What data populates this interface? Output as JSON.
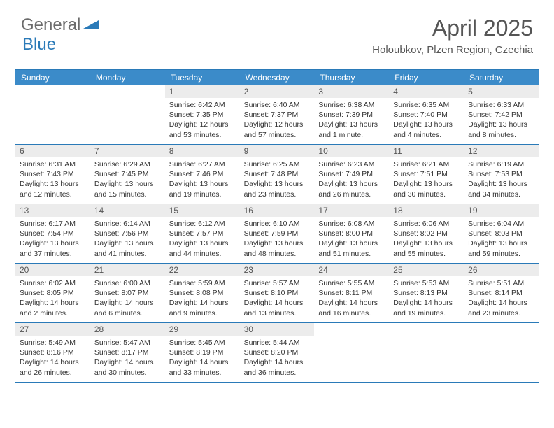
{
  "logo": {
    "gray": "General",
    "blue": "Blue"
  },
  "title": "April 2025",
  "location": "Holoubkov, Plzen Region, Czechia",
  "colors": {
    "header_bar": "#3b8bc9",
    "border": "#2a7ab8",
    "daynum_bg": "#ececec",
    "text": "#333333",
    "title_text": "#555555"
  },
  "weekdays": [
    "Sunday",
    "Monday",
    "Tuesday",
    "Wednesday",
    "Thursday",
    "Friday",
    "Saturday"
  ],
  "weeks": [
    [
      {
        "empty": true
      },
      {
        "empty": true
      },
      {
        "num": "1",
        "sr": "Sunrise: 6:42 AM",
        "ss": "Sunset: 7:35 PM",
        "dl": "Daylight: 12 hours and 53 minutes."
      },
      {
        "num": "2",
        "sr": "Sunrise: 6:40 AM",
        "ss": "Sunset: 7:37 PM",
        "dl": "Daylight: 12 hours and 57 minutes."
      },
      {
        "num": "3",
        "sr": "Sunrise: 6:38 AM",
        "ss": "Sunset: 7:39 PM",
        "dl": "Daylight: 13 hours and 1 minute."
      },
      {
        "num": "4",
        "sr": "Sunrise: 6:35 AM",
        "ss": "Sunset: 7:40 PM",
        "dl": "Daylight: 13 hours and 4 minutes."
      },
      {
        "num": "5",
        "sr": "Sunrise: 6:33 AM",
        "ss": "Sunset: 7:42 PM",
        "dl": "Daylight: 13 hours and 8 minutes."
      }
    ],
    [
      {
        "num": "6",
        "sr": "Sunrise: 6:31 AM",
        "ss": "Sunset: 7:43 PM",
        "dl": "Daylight: 13 hours and 12 minutes."
      },
      {
        "num": "7",
        "sr": "Sunrise: 6:29 AM",
        "ss": "Sunset: 7:45 PM",
        "dl": "Daylight: 13 hours and 15 minutes."
      },
      {
        "num": "8",
        "sr": "Sunrise: 6:27 AM",
        "ss": "Sunset: 7:46 PM",
        "dl": "Daylight: 13 hours and 19 minutes."
      },
      {
        "num": "9",
        "sr": "Sunrise: 6:25 AM",
        "ss": "Sunset: 7:48 PM",
        "dl": "Daylight: 13 hours and 23 minutes."
      },
      {
        "num": "10",
        "sr": "Sunrise: 6:23 AM",
        "ss": "Sunset: 7:49 PM",
        "dl": "Daylight: 13 hours and 26 minutes."
      },
      {
        "num": "11",
        "sr": "Sunrise: 6:21 AM",
        "ss": "Sunset: 7:51 PM",
        "dl": "Daylight: 13 hours and 30 minutes."
      },
      {
        "num": "12",
        "sr": "Sunrise: 6:19 AM",
        "ss": "Sunset: 7:53 PM",
        "dl": "Daylight: 13 hours and 34 minutes."
      }
    ],
    [
      {
        "num": "13",
        "sr": "Sunrise: 6:17 AM",
        "ss": "Sunset: 7:54 PM",
        "dl": "Daylight: 13 hours and 37 minutes."
      },
      {
        "num": "14",
        "sr": "Sunrise: 6:14 AM",
        "ss": "Sunset: 7:56 PM",
        "dl": "Daylight: 13 hours and 41 minutes."
      },
      {
        "num": "15",
        "sr": "Sunrise: 6:12 AM",
        "ss": "Sunset: 7:57 PM",
        "dl": "Daylight: 13 hours and 44 minutes."
      },
      {
        "num": "16",
        "sr": "Sunrise: 6:10 AM",
        "ss": "Sunset: 7:59 PM",
        "dl": "Daylight: 13 hours and 48 minutes."
      },
      {
        "num": "17",
        "sr": "Sunrise: 6:08 AM",
        "ss": "Sunset: 8:00 PM",
        "dl": "Daylight: 13 hours and 51 minutes."
      },
      {
        "num": "18",
        "sr": "Sunrise: 6:06 AM",
        "ss": "Sunset: 8:02 PM",
        "dl": "Daylight: 13 hours and 55 minutes."
      },
      {
        "num": "19",
        "sr": "Sunrise: 6:04 AM",
        "ss": "Sunset: 8:03 PM",
        "dl": "Daylight: 13 hours and 59 minutes."
      }
    ],
    [
      {
        "num": "20",
        "sr": "Sunrise: 6:02 AM",
        "ss": "Sunset: 8:05 PM",
        "dl": "Daylight: 14 hours and 2 minutes."
      },
      {
        "num": "21",
        "sr": "Sunrise: 6:00 AM",
        "ss": "Sunset: 8:07 PM",
        "dl": "Daylight: 14 hours and 6 minutes."
      },
      {
        "num": "22",
        "sr": "Sunrise: 5:59 AM",
        "ss": "Sunset: 8:08 PM",
        "dl": "Daylight: 14 hours and 9 minutes."
      },
      {
        "num": "23",
        "sr": "Sunrise: 5:57 AM",
        "ss": "Sunset: 8:10 PM",
        "dl": "Daylight: 14 hours and 13 minutes."
      },
      {
        "num": "24",
        "sr": "Sunrise: 5:55 AM",
        "ss": "Sunset: 8:11 PM",
        "dl": "Daylight: 14 hours and 16 minutes."
      },
      {
        "num": "25",
        "sr": "Sunrise: 5:53 AM",
        "ss": "Sunset: 8:13 PM",
        "dl": "Daylight: 14 hours and 19 minutes."
      },
      {
        "num": "26",
        "sr": "Sunrise: 5:51 AM",
        "ss": "Sunset: 8:14 PM",
        "dl": "Daylight: 14 hours and 23 minutes."
      }
    ],
    [
      {
        "num": "27",
        "sr": "Sunrise: 5:49 AM",
        "ss": "Sunset: 8:16 PM",
        "dl": "Daylight: 14 hours and 26 minutes."
      },
      {
        "num": "28",
        "sr": "Sunrise: 5:47 AM",
        "ss": "Sunset: 8:17 PM",
        "dl": "Daylight: 14 hours and 30 minutes."
      },
      {
        "num": "29",
        "sr": "Sunrise: 5:45 AM",
        "ss": "Sunset: 8:19 PM",
        "dl": "Daylight: 14 hours and 33 minutes."
      },
      {
        "num": "30",
        "sr": "Sunrise: 5:44 AM",
        "ss": "Sunset: 8:20 PM",
        "dl": "Daylight: 14 hours and 36 minutes."
      },
      {
        "empty": true
      },
      {
        "empty": true
      },
      {
        "empty": true
      }
    ]
  ]
}
